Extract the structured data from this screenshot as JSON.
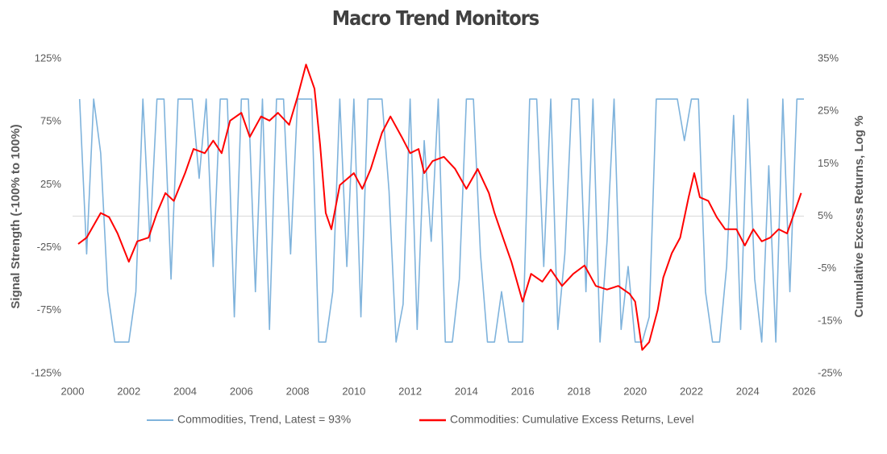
{
  "chart_data": {
    "type": "line",
    "title": "Macro Trend Monitors",
    "ylabel": "Signal Strength (-100% to 100%)",
    "y2label": "Cumulative Excess Returns, Log %",
    "xlim": [
      2000,
      2026
    ],
    "xticks": [
      2000,
      2002,
      2004,
      2006,
      2008,
      2010,
      2012,
      2014,
      2016,
      2018,
      2020,
      2022,
      2024,
      2026
    ],
    "ylim": [
      -125,
      125
    ],
    "yticks": [
      {
        "value": -125,
        "label": "-125%"
      },
      {
        "value": -75,
        "label": "-75%"
      },
      {
        "value": -25,
        "label": "-25%"
      },
      {
        "value": 25,
        "label": "25%"
      },
      {
        "value": 75,
        "label": "75%"
      },
      {
        "value": 125,
        "label": "125%"
      }
    ],
    "y2lim": [
      -25,
      35
    ],
    "y2ticks": [
      {
        "value": -25,
        "label": "-25%"
      },
      {
        "value": -15,
        "label": "-15%"
      },
      {
        "value": -5,
        "label": "-5%"
      },
      {
        "value": 5,
        "label": "5%"
      },
      {
        "value": 15,
        "label": "15%"
      },
      {
        "value": 25,
        "label": "25%"
      },
      {
        "value": 35,
        "label": "35%"
      }
    ],
    "legend": "bottom",
    "series": [
      {
        "name": "Commodities, Trend, Latest = 93%",
        "color": "#7fb3dc",
        "x": [
          2000.25,
          2000.5,
          2000.75,
          2001.0,
          2001.25,
          2001.5,
          2001.75,
          2002.0,
          2002.25,
          2002.5,
          2002.75,
          2003.0,
          2003.25,
          2003.5,
          2003.75,
          2004.0,
          2004.25,
          2004.5,
          2004.75,
          2005.0,
          2005.25,
          2005.5,
          2005.75,
          2006.0,
          2006.25,
          2006.5,
          2006.75,
          2007.0,
          2007.25,
          2007.5,
          2007.75,
          2008.0,
          2008.25,
          2008.5,
          2008.75,
          2009.0,
          2009.25,
          2009.5,
          2009.75,
          2010.0,
          2010.25,
          2010.5,
          2010.75,
          2011.0,
          2011.25,
          2011.5,
          2011.75,
          2012.0,
          2012.25,
          2012.5,
          2012.75,
          2013.0,
          2013.25,
          2013.5,
          2013.75,
          2014.0,
          2014.25,
          2014.5,
          2014.75,
          2015.0,
          2015.25,
          2015.5,
          2015.75,
          2016.0,
          2016.25,
          2016.5,
          2016.75,
          2017.0,
          2017.25,
          2017.5,
          2017.75,
          2018.0,
          2018.25,
          2018.5,
          2018.75,
          2019.0,
          2019.25,
          2019.5,
          2019.75,
          2020.0,
          2020.25,
          2020.5,
          2020.75,
          2021.0,
          2021.25,
          2021.5,
          2021.75,
          2022.0,
          2022.25,
          2022.5,
          2022.75,
          2023.0,
          2023.25,
          2023.5,
          2023.75,
          2024.0,
          2024.25,
          2024.5,
          2024.75,
          2025.0,
          2025.25,
          2025.5,
          2025.75,
          2026.0
        ],
        "values": [
          93,
          -30,
          93,
          50,
          -60,
          -100,
          -100,
          -100,
          -60,
          93,
          -20,
          93,
          93,
          -50,
          93,
          93,
          93,
          30,
          93,
          -40,
          93,
          93,
          -80,
          93,
          93,
          -60,
          93,
          -90,
          93,
          93,
          -30,
          93,
          93,
          93,
          -100,
          -100,
          -60,
          93,
          -40,
          93,
          -80,
          93,
          93,
          93,
          20,
          -100,
          -70,
          93,
          -90,
          60,
          -20,
          93,
          -100,
          -100,
          -50,
          93,
          93,
          -30,
          -100,
          -100,
          -60,
          -100,
          -100,
          -100,
          93,
          93,
          -40,
          93,
          -90,
          -30,
          93,
          93,
          -60,
          93,
          -100,
          -20,
          93,
          -90,
          -40,
          -100,
          -100,
          -80,
          93,
          93,
          93,
          93,
          60,
          93,
          93,
          -60,
          -100,
          -100,
          -40,
          80,
          -90,
          93,
          -50,
          -100,
          40,
          -100,
          93,
          -60,
          93,
          93
        ]
      },
      {
        "name": "Commodities: Cumulative Excess Returns, Level",
        "color": "#ff0000",
        "axis": "y2",
        "x": [
          2000.2,
          2000.5,
          2001.0,
          2001.3,
          2001.6,
          2002.0,
          2002.3,
          2002.7,
          2003.0,
          2003.3,
          2003.6,
          2004.0,
          2004.3,
          2004.7,
          2005.0,
          2005.3,
          2005.6,
          2006.0,
          2006.3,
          2006.7,
          2007.0,
          2007.3,
          2007.7,
          2008.0,
          2008.3,
          2008.6,
          2008.8,
          2009.0,
          2009.2,
          2009.5,
          2010.0,
          2010.3,
          2010.6,
          2011.0,
          2011.3,
          2011.7,
          2012.0,
          2012.3,
          2012.5,
          2012.8,
          2013.2,
          2013.6,
          2014.0,
          2014.4,
          2014.8,
          2015.0,
          2015.3,
          2015.6,
          2016.0,
          2016.3,
          2016.7,
          2017.0,
          2017.4,
          2017.8,
          2018.2,
          2018.6,
          2019.0,
          2019.4,
          2019.8,
          2020.0,
          2020.25,
          2020.5,
          2020.8,
          2021.0,
          2021.3,
          2021.6,
          2021.9,
          2022.1,
          2022.3,
          2022.6,
          2022.9,
          2023.2,
          2023.6,
          2023.9,
          2024.2,
          2024.5,
          2024.8,
          2025.1,
          2025.4,
          2025.7,
          2025.9
        ],
        "values": [
          -0.3,
          0.9,
          5.6,
          4.8,
          1.7,
          -3.7,
          0.2,
          0.9,
          5.6,
          9.4,
          7.9,
          13.2,
          17.8,
          17.0,
          19.4,
          17.0,
          23.2,
          24.7,
          20.1,
          24.0,
          23.2,
          24.7,
          22.4,
          27.8,
          33.9,
          29.3,
          18.6,
          5.6,
          2.5,
          10.9,
          13.2,
          10.2,
          14.0,
          20.9,
          24.0,
          20.1,
          17.0,
          17.8,
          13.2,
          15.5,
          16.3,
          14.0,
          10.2,
          14.0,
          9.4,
          5.6,
          0.9,
          -3.7,
          -11.3,
          -6.0,
          -7.5,
          -5.2,
          -8.3,
          -6.0,
          -4.4,
          -8.3,
          -9.0,
          -8.3,
          -9.8,
          -11.3,
          -20.5,
          -19.0,
          -12.9,
          -6.7,
          -2.1,
          0.9,
          8.6,
          13.2,
          8.6,
          7.9,
          4.8,
          2.5,
          2.5,
          -0.6,
          2.5,
          0.2,
          0.9,
          2.5,
          1.7,
          6.3,
          9.4
        ]
      }
    ]
  }
}
